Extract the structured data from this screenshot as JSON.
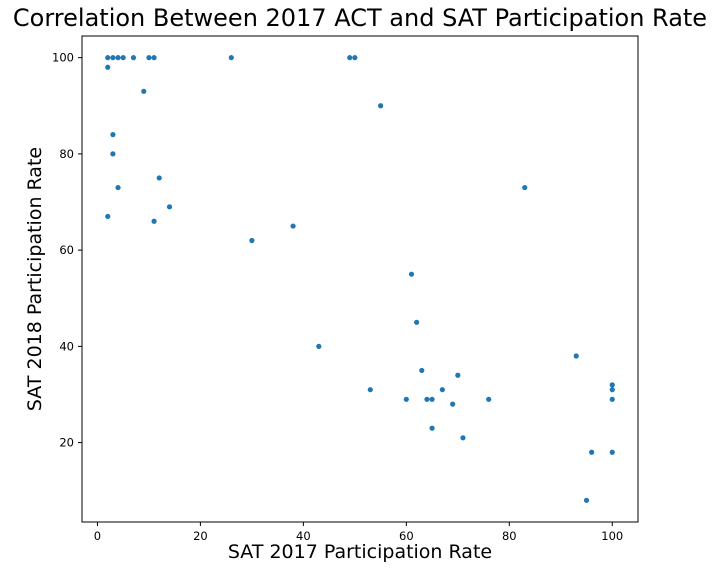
{
  "chart_data": {
    "type": "scatter",
    "title": "Correlation Between 2017 ACT and SAT Participation Rate",
    "xlabel": "SAT 2017 Participation Rate",
    "ylabel": "SAT 2018 Participation Rate",
    "xlim": [
      -3,
      105
    ],
    "ylim": [
      3.5,
      104.5
    ],
    "xticks": [
      0,
      20,
      40,
      60,
      80,
      100
    ],
    "yticks": [
      20,
      40,
      60,
      80,
      100
    ],
    "grid": false,
    "marker_color": "#1f77b4",
    "points": [
      {
        "x": 2,
        "y": 100
      },
      {
        "x": 3,
        "y": 100
      },
      {
        "x": 4,
        "y": 100
      },
      {
        "x": 5,
        "y": 100
      },
      {
        "x": 7,
        "y": 100
      },
      {
        "x": 10,
        "y": 100
      },
      {
        "x": 11,
        "y": 100
      },
      {
        "x": 26,
        "y": 100
      },
      {
        "x": 49,
        "y": 100
      },
      {
        "x": 50,
        "y": 100
      },
      {
        "x": 2,
        "y": 98
      },
      {
        "x": 9,
        "y": 93
      },
      {
        "x": 55,
        "y": 90
      },
      {
        "x": 3,
        "y": 84
      },
      {
        "x": 3,
        "y": 80
      },
      {
        "x": 12,
        "y": 75
      },
      {
        "x": 4,
        "y": 73
      },
      {
        "x": 83,
        "y": 73
      },
      {
        "x": 14,
        "y": 69
      },
      {
        "x": 2,
        "y": 67
      },
      {
        "x": 11,
        "y": 66
      },
      {
        "x": 38,
        "y": 65
      },
      {
        "x": 30,
        "y": 62
      },
      {
        "x": 61,
        "y": 55
      },
      {
        "x": 62,
        "y": 45
      },
      {
        "x": 43,
        "y": 40
      },
      {
        "x": 93,
        "y": 38
      },
      {
        "x": 63,
        "y": 35
      },
      {
        "x": 70,
        "y": 34
      },
      {
        "x": 100,
        "y": 32
      },
      {
        "x": 53,
        "y": 31
      },
      {
        "x": 67,
        "y": 31
      },
      {
        "x": 100,
        "y": 31
      },
      {
        "x": 60,
        "y": 29
      },
      {
        "x": 64,
        "y": 29
      },
      {
        "x": 65,
        "y": 29
      },
      {
        "x": 76,
        "y": 29
      },
      {
        "x": 100,
        "y": 29
      },
      {
        "x": 69,
        "y": 28
      },
      {
        "x": 65,
        "y": 23
      },
      {
        "x": 71,
        "y": 21
      },
      {
        "x": 96,
        "y": 18
      },
      {
        "x": 100,
        "y": 18
      },
      {
        "x": 95,
        "y": 8
      }
    ]
  }
}
